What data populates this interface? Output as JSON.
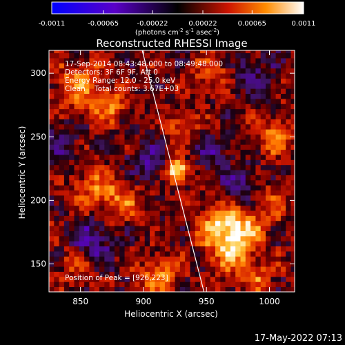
{
  "chart_data": {
    "type": "heatmap",
    "title": "Reconstructed RHESSI Image",
    "xlabel": "Heliocentric X (arcsec)",
    "ylabel": "Heliocentric Y (arcsec)",
    "xlim": [
      825,
      1020
    ],
    "ylim": [
      128,
      318
    ],
    "x_ticks": [
      850,
      900,
      950,
      1000
    ],
    "y_ticks": [
      150,
      200,
      250,
      300
    ],
    "colorbar": {
      "min": -0.0011,
      "max": 0.0011,
      "tick_values": [
        -0.0011,
        -0.00065,
        -0.00022,
        0.00022,
        0.00065,
        0.0011
      ],
      "tick_labels": [
        "-0.0011",
        "-0.00065",
        "-0.00022",
        "0.00022",
        "0.00065",
        "0.0011"
      ],
      "unit_prefix": "(photons cm",
      "unit_sup1": "-2",
      "unit_mid": " s",
      "unit_sup2": "-1",
      "unit_mid2": " asec",
      "unit_sup3": "-2",
      "unit_suffix": ")"
    },
    "annotations": {
      "time_range": "17-Sep-2014 08:43:48.000 to 08:49:48.000",
      "detectors": "Detectors: 3F 6F 9F, Att 0",
      "energy_range": "Energy Range: 12.0 - 25.0 keV",
      "algorithm": "Clean    Total counts: 3.67E+03",
      "peak_position": "Position of Peak = [926,223]"
    },
    "peak": {
      "x": 926,
      "y": 223,
      "value": 0.0011
    },
    "limb_line": {
      "points": [
        [
          899,
          318
        ],
        [
          948,
          128
        ]
      ]
    },
    "bright_sources": [
      {
        "x": 926,
        "y": 223,
        "value": 0.00105,
        "radius": 7
      },
      {
        "x": 960,
        "y": 182,
        "value": 0.0006,
        "radius": 13
      },
      {
        "x": 978,
        "y": 177,
        "value": 0.00055,
        "radius": 12
      },
      {
        "x": 968,
        "y": 160,
        "value": 0.0005,
        "radius": 12
      },
      {
        "x": 912,
        "y": 140,
        "value": 0.00055,
        "radius": 11
      },
      {
        "x": 848,
        "y": 290,
        "value": 0.0005,
        "radius": 14
      },
      {
        "x": 872,
        "y": 276,
        "value": 0.00045,
        "radius": 10
      },
      {
        "x": 860,
        "y": 210,
        "value": 0.00045,
        "radius": 13
      },
      {
        "x": 885,
        "y": 200,
        "value": 0.0004,
        "radius": 11
      },
      {
        "x": 930,
        "y": 258,
        "value": 0.0004,
        "radius": 10
      },
      {
        "x": 955,
        "y": 300,
        "value": 0.00035,
        "radius": 12
      },
      {
        "x": 1005,
        "y": 250,
        "value": 0.0005,
        "radius": 11
      },
      {
        "x": 1000,
        "y": 200,
        "value": 0.00035,
        "radius": 12
      },
      {
        "x": 990,
        "y": 140,
        "value": 0.0004,
        "radius": 10
      },
      {
        "x": 845,
        "y": 150,
        "value": 0.0003,
        "radius": 12
      }
    ],
    "dark_sources": [
      {
        "x": 905,
        "y": 230,
        "value": -0.0004,
        "radius": 12
      },
      {
        "x": 978,
        "y": 210,
        "value": -0.00045,
        "radius": 12
      },
      {
        "x": 985,
        "y": 300,
        "value": -0.0003,
        "radius": 13
      },
      {
        "x": 835,
        "y": 245,
        "value": -0.0003,
        "radius": 10
      },
      {
        "x": 858,
        "y": 168,
        "value": -0.0005,
        "radius": 12
      },
      {
        "x": 952,
        "y": 238,
        "value": -0.0003,
        "radius": 10
      }
    ]
  },
  "footer": {
    "timestamp": "17-May-2022 07:13"
  }
}
